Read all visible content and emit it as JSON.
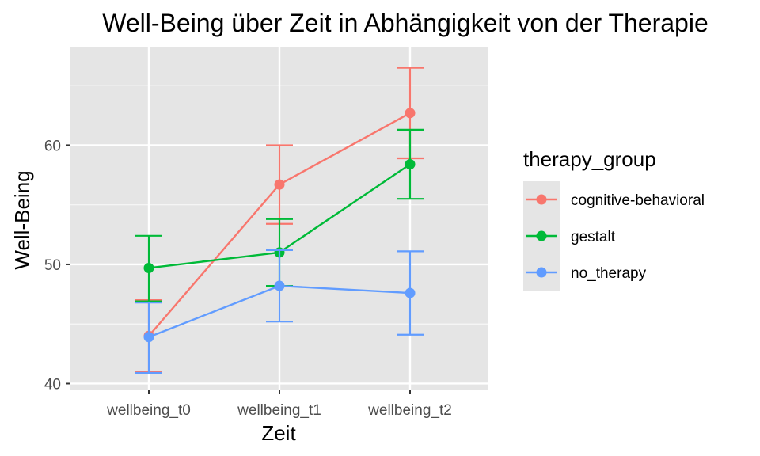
{
  "chart_data": {
    "type": "line",
    "title": "Well-Being über Zeit in Abhängigkeit von der Therapie",
    "xlabel": "Zeit",
    "ylabel": "Well-Being",
    "categories": [
      "wellbeing_t0",
      "wellbeing_t1",
      "wellbeing_t2"
    ],
    "ylim": [
      39.5,
      68.2
    ],
    "yticks": [
      40,
      50,
      60
    ],
    "grid": true,
    "error_bars": true,
    "legend": {
      "title": "therapy_group",
      "position": "right"
    },
    "series": [
      {
        "name": "cognitive-behavioral",
        "color": "#F8766D",
        "values": [
          44.0,
          56.7,
          62.7
        ],
        "lower": [
          41.0,
          53.4,
          58.9
        ],
        "upper": [
          47.0,
          60.0,
          66.5
        ]
      },
      {
        "name": "gestalt",
        "color": "#00BA38",
        "values": [
          49.7,
          51.0,
          58.4
        ],
        "lower": [
          46.9,
          48.2,
          55.5
        ],
        "upper": [
          52.4,
          53.8,
          61.3
        ]
      },
      {
        "name": "no_therapy",
        "color": "#619CFF",
        "values": [
          43.9,
          48.2,
          47.6
        ],
        "lower": [
          40.9,
          45.2,
          44.1
        ],
        "upper": [
          46.8,
          51.2,
          51.1
        ]
      }
    ]
  },
  "colors": {
    "panel_background": "#E5E5E5",
    "grid_line": "#FFFFFF",
    "legend_key_background": "#E5E5E5"
  }
}
